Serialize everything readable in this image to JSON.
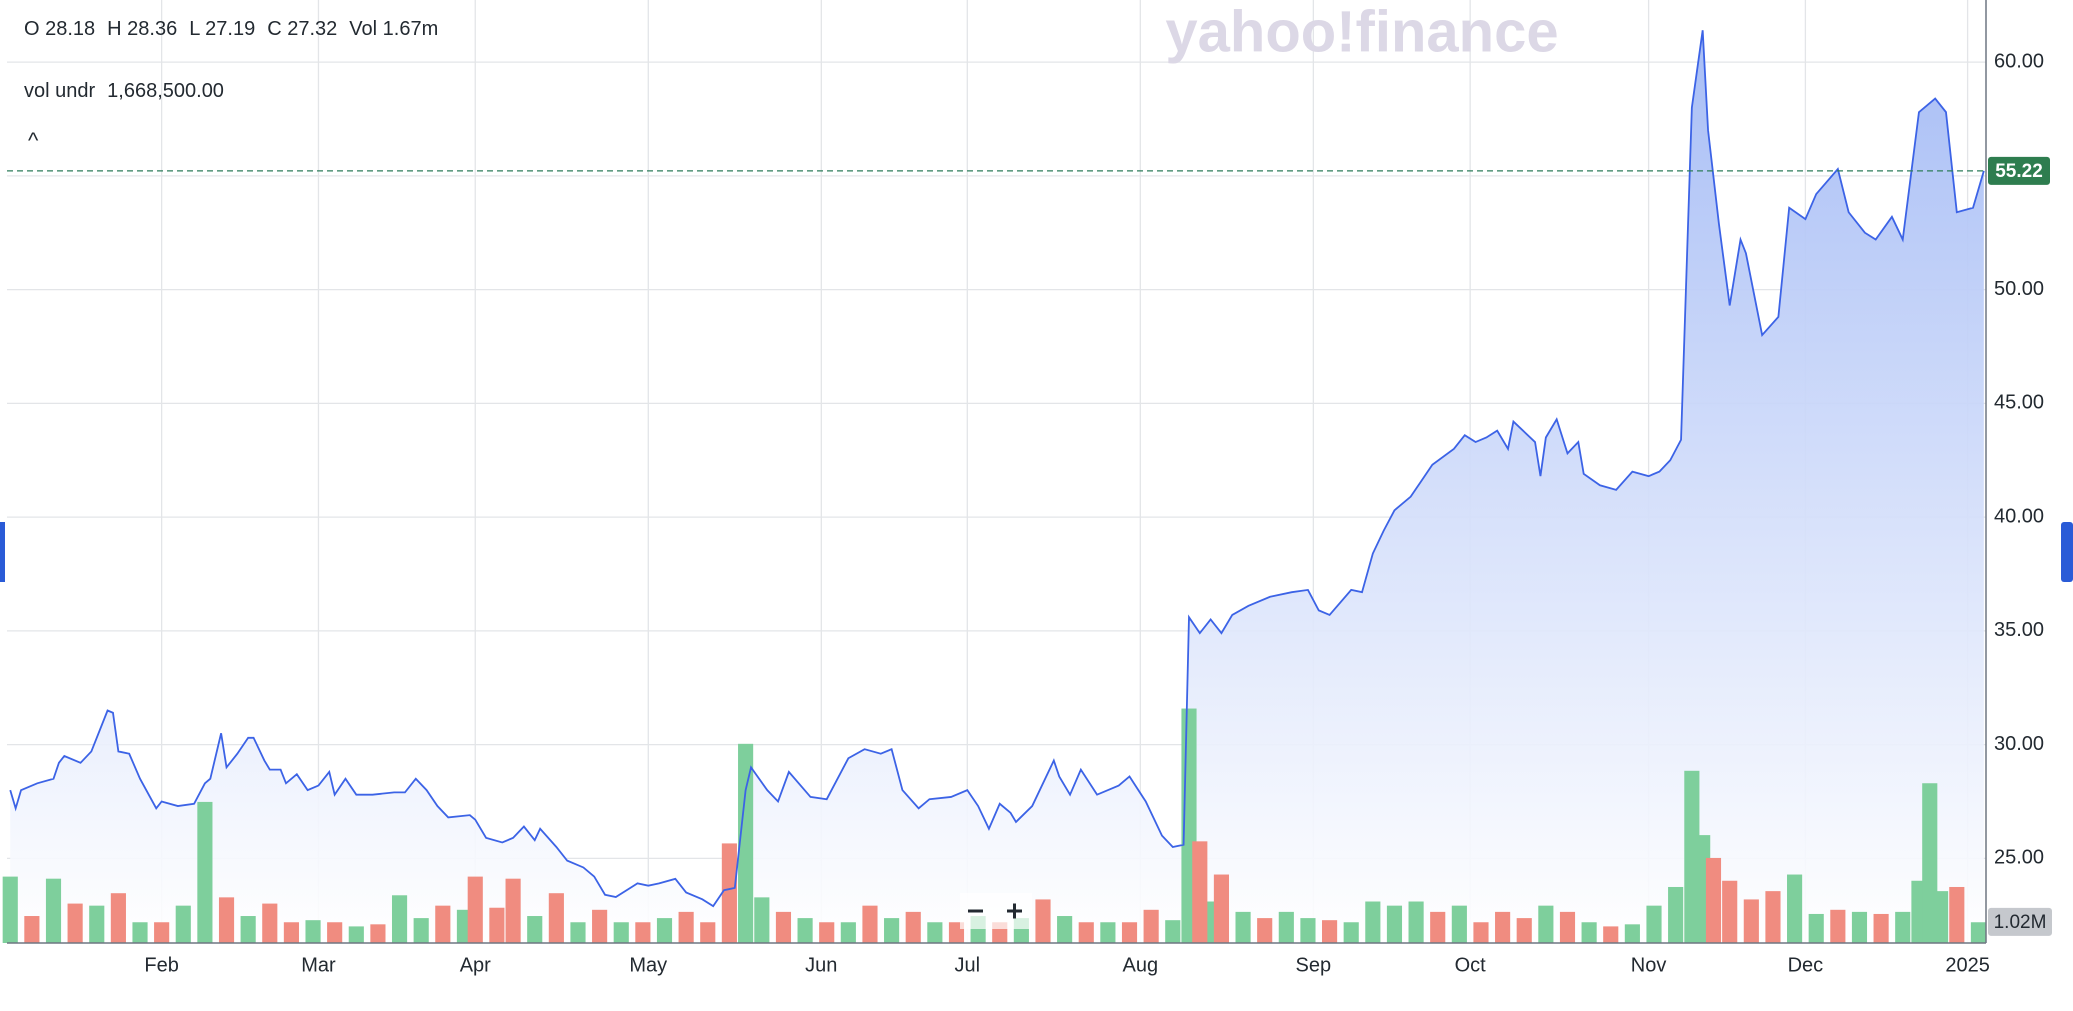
{
  "chart_data": {
    "type": "line",
    "watermark": "yahoo!finance",
    "header": {
      "ohlc": [
        "O 28.18",
        "H 28.36",
        "L 27.19",
        "C 27.32",
        "Vol 1.67m"
      ],
      "indicator_name": "vol undr",
      "indicator_value": "1,668,500.00",
      "collapse": "^"
    },
    "color": "#3c63e6",
    "x": [
      4,
      5,
      6,
      9,
      12,
      13,
      14,
      17,
      19,
      22,
      23,
      24,
      26,
      28,
      31,
      32,
      35,
      38,
      40,
      41,
      43,
      44,
      46,
      48,
      49,
      51,
      52,
      54,
      55,
      57,
      59,
      61,
      63,
      64,
      66,
      68,
      71,
      75,
      77,
      79,
      81,
      83,
      85,
      89,
      90,
      92,
      95,
      97,
      99,
      101,
      102,
      105,
      107,
      110,
      112,
      114,
      116,
      120,
      122,
      124,
      127,
      129,
      132,
      134,
      136,
      138,
      140,
      141,
      144,
      146,
      148,
      152,
      155,
      159,
      162,
      165,
      167,
      169,
      172,
      174,
      178,
      181,
      183,
      185,
      187,
      189,
      190,
      193,
      197,
      198,
      200,
      202,
      205,
      209,
      211,
      214,
      217,
      219,
      221,
      222,
      224,
      226,
      228,
      230,
      233,
      237,
      241,
      244,
      246,
      248,
      252,
      254,
      256,
      258,
      260,
      263,
      265,
      267,
      271,
      273,
      275,
      277,
      279,
      281,
      282,
      286,
      287,
      288,
      290,
      292,
      294,
      295,
      298,
      301,
      304,
      307,
      309,
      311,
      313,
      315,
      317,
      318,
      320,
      322,
      324,
      325,
      328,
      331,
      333,
      336,
      338,
      342,
      344,
      347,
      349,
      352,
      354,
      357,
      360,
      362,
      364,
      367,
      369
    ],
    "values": [
      28.0,
      27.2,
      28.0,
      28.3,
      28.5,
      29.2,
      29.5,
      29.2,
      29.7,
      31.5,
      31.4,
      29.7,
      29.6,
      28.5,
      27.2,
      27.5,
      27.3,
      27.4,
      28.3,
      28.5,
      30.5,
      29.0,
      29.6,
      30.3,
      30.3,
      29.3,
      28.9,
      28.9,
      28.3,
      28.7,
      28.0,
      28.2,
      28.8,
      27.8,
      28.5,
      27.8,
      27.8,
      27.9,
      27.9,
      28.5,
      28.0,
      27.3,
      26.8,
      26.9,
      26.7,
      25.9,
      25.7,
      25.9,
      26.4,
      25.8,
      26.3,
      25.5,
      24.9,
      24.6,
      24.2,
      23.4,
      23.3,
      23.9,
      23.8,
      23.9,
      24.1,
      23.5,
      23.2,
      22.9,
      23.6,
      23.7,
      28.0,
      29.0,
      28.0,
      27.5,
      28.8,
      27.7,
      27.6,
      29.4,
      29.8,
      29.6,
      29.8,
      28.0,
      27.2,
      27.6,
      27.7,
      28.0,
      27.3,
      26.3,
      27.4,
      27.0,
      26.6,
      27.3,
      29.3,
      28.6,
      27.8,
      28.9,
      27.8,
      28.2,
      28.6,
      27.5,
      26.0,
      25.5,
      25.6,
      35.6,
      34.9,
      35.5,
      34.9,
      35.7,
      36.1,
      36.5,
      36.7,
      36.8,
      35.9,
      35.7,
      36.8,
      36.7,
      38.4,
      39.4,
      40.3,
      40.9,
      41.6,
      42.3,
      43.0,
      43.6,
      43.3,
      43.5,
      43.8,
      43.0,
      44.2,
      43.3,
      41.8,
      43.5,
      44.3,
      42.8,
      43.3,
      41.9,
      41.4,
      41.2,
      42.0,
      41.8,
      42.0,
      42.5,
      43.4,
      58.0,
      61.4,
      57.0,
      52.9,
      49.3,
      52.2,
      51.6,
      48.0,
      48.8,
      53.6,
      53.1,
      54.2,
      55.3,
      53.4,
      52.5,
      52.2,
      53.2,
      52.2,
      57.8,
      58.4,
      57.8,
      53.4,
      53.6,
      55.22
    ],
    "last_price": 55.22,
    "xlim": [
      3.4,
      369.4
    ],
    "xticks": [
      {
        "value": 32,
        "label": "Feb"
      },
      {
        "value": 61,
        "label": "Mar"
      },
      {
        "value": 90,
        "label": "Apr"
      },
      {
        "value": 122,
        "label": "May"
      },
      {
        "value": 154,
        "label": "Jun"
      },
      {
        "value": 181,
        "label": "Jul"
      },
      {
        "value": 213,
        "label": "Aug"
      },
      {
        "value": 245,
        "label": "Sep"
      },
      {
        "value": 274,
        "label": "Oct"
      },
      {
        "value": 307,
        "label": "Nov"
      },
      {
        "value": 336,
        "label": "Dec"
      },
      {
        "value": 366,
        "label": "2025"
      }
    ],
    "ylim": [
      21.28,
      62.73
    ],
    "yticks": [
      {
        "value": 25,
        "label": "25.00"
      },
      {
        "value": 30,
        "label": "30.00"
      },
      {
        "value": 35,
        "label": "35.00"
      },
      {
        "value": 40,
        "label": "40.00"
      },
      {
        "value": 45,
        "label": "45.00"
      },
      {
        "value": 50,
        "label": "50.00"
      },
      {
        "value": 55,
        "label": "55.00"
      },
      {
        "value": 60,
        "label": "60.00"
      }
    ],
    "grid": true,
    "volume": {
      "y2lim": [
        0,
        45.45
      ],
      "marker": {
        "value": 1.02,
        "label": "1.02M"
      },
      "series": [
        {
          "color": "#7ecf9c",
          "x": [
            4,
            12,
            20,
            28,
            36,
            40,
            48,
            60,
            68,
            76,
            80,
            88,
            101,
            109,
            117,
            125,
            140,
            143,
            151,
            159,
            167,
            175,
            183,
            191,
            199,
            207,
            219,
            222,
            226,
            232,
            240,
            244,
            252,
            256,
            260,
            264,
            272,
            288,
            296,
            304,
            308,
            312,
            315,
            317,
            334,
            338,
            346,
            354,
            357,
            359,
            361,
            368
          ],
          "values": [
            3.2,
            3.1,
            1.8,
            1.0,
            1.8,
            6.8,
            1.3,
            1.1,
            0.8,
            2.3,
            1.2,
            1.6,
            1.3,
            1.0,
            1.0,
            1.2,
            9.6,
            2.2,
            1.2,
            1.0,
            1.2,
            1.0,
            1.3,
            1.2,
            1.3,
            1.0,
            1.1,
            11.3,
            2.0,
            1.5,
            1.5,
            1.2,
            1.0,
            2.0,
            1.8,
            2.0,
            1.8,
            1.8,
            1.0,
            0.9,
            1.8,
            2.7,
            8.3,
            5.2,
            3.3,
            1.4,
            1.5,
            1.5,
            3.0,
            7.7,
            2.5,
            1.0
          ]
        },
        {
          "color": "#f08c80",
          "x": [
            8,
            16,
            24,
            32,
            44,
            52,
            56,
            64,
            72,
            84,
            90,
            94,
            97,
            105,
            113,
            121,
            129,
            133,
            137,
            147,
            155,
            163,
            171,
            179,
            187,
            195,
            203,
            211,
            215,
            224,
            228,
            236,
            248,
            268,
            276,
            280,
            284,
            292,
            300,
            319,
            322,
            326,
            330,
            342,
            350,
            364
          ],
          "values": [
            1.3,
            1.9,
            2.4,
            1.0,
            2.2,
            1.9,
            1.0,
            1.0,
            0.9,
            1.8,
            3.2,
            1.7,
            3.1,
            2.4,
            1.6,
            1.0,
            1.5,
            1.0,
            4.8,
            1.5,
            1.0,
            1.8,
            1.5,
            1.0,
            1.0,
            2.1,
            1.0,
            1.0,
            1.6,
            4.9,
            3.3,
            1.2,
            1.1,
            1.5,
            1.0,
            1.5,
            1.2,
            1.5,
            0.8,
            4.1,
            3.0,
            2.1,
            2.5,
            1.6,
            1.4,
            2.7
          ]
        }
      ]
    }
  }
}
